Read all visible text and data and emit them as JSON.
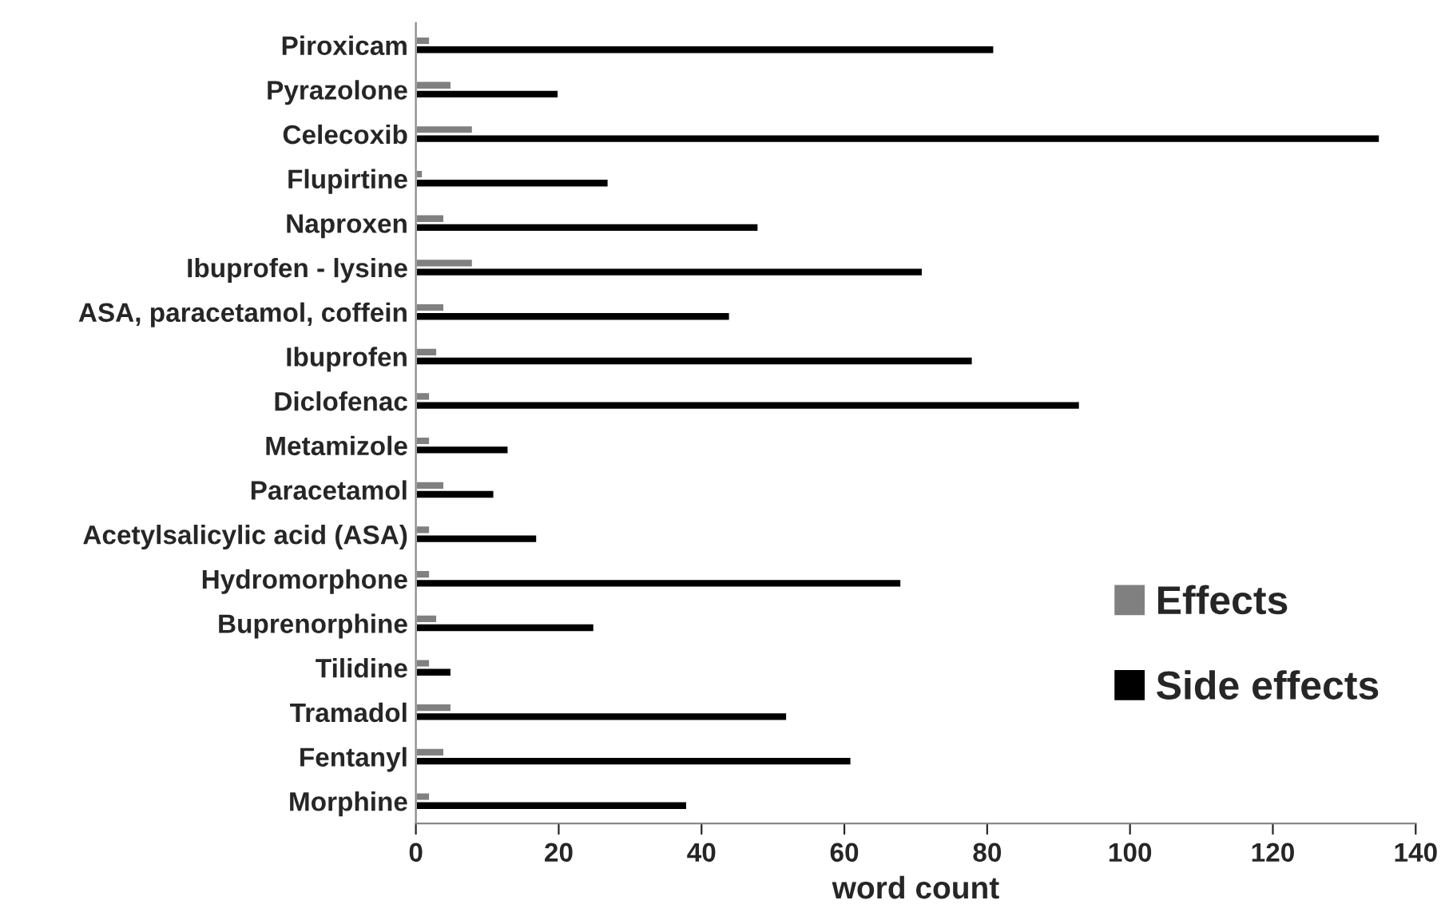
{
  "chart_data": {
    "type": "bar",
    "orientation": "horizontal",
    "xlabel": "word count",
    "categories": [
      "Piroxicam",
      "Pyrazolone",
      "Celecoxib",
      "Flupirtine",
      "Naproxen",
      "Ibuprofen - lysine",
      "ASA, paracetamol, coffein",
      "Ibuprofen",
      "Diclofenac",
      "Metamizole",
      "Paracetamol",
      "Acetylsalicylic acid (ASA)",
      "Hydromorphone",
      "Buprenorphine",
      "Tilidine",
      "Tramadol",
      "Fentanyl",
      "Morphine"
    ],
    "series": [
      {
        "name": "Effects",
        "color": "#808080",
        "values": [
          2,
          5,
          8,
          1,
          4,
          8,
          4,
          3,
          2,
          2,
          4,
          2,
          2,
          3,
          2,
          5,
          4,
          2
        ]
      },
      {
        "name": "Side effects",
        "color": "#000000",
        "values": [
          81,
          20,
          135,
          27,
          48,
          71,
          44,
          78,
          93,
          13,
          11,
          17,
          68,
          25,
          5,
          52,
          61,
          38
        ]
      }
    ],
    "xlim": [
      0,
      140
    ],
    "xticks": [
      0,
      20,
      40,
      60,
      80,
      100,
      120,
      140
    ],
    "grid": false,
    "legend": "bottom right"
  }
}
